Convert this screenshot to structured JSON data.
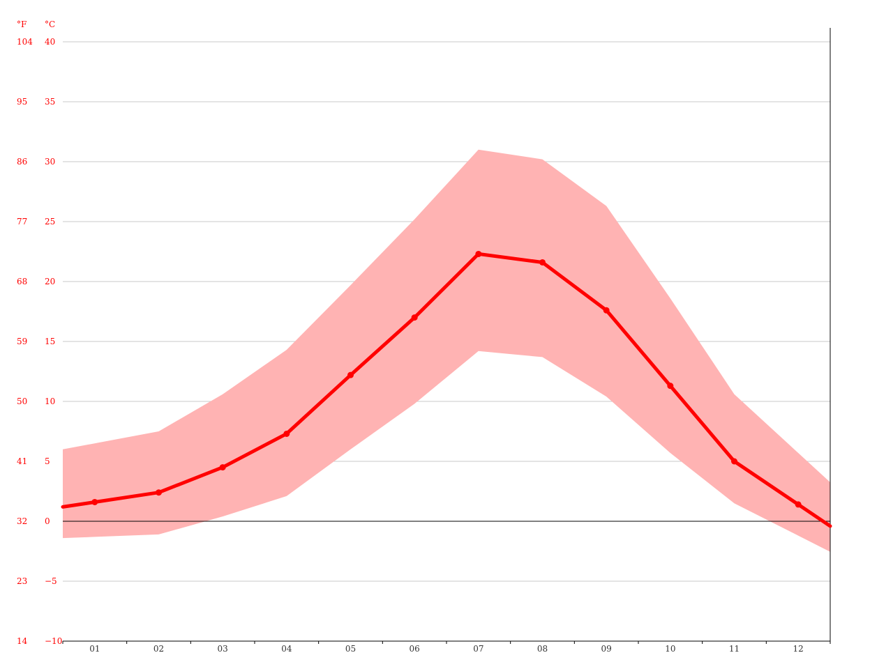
{
  "chart_data": {
    "type": "line",
    "title": "",
    "xlabel": "",
    "ylabel": "",
    "unit_labels": {
      "fahrenheit": "°F",
      "celsius": "°C"
    },
    "categories": [
      "01",
      "02",
      "03",
      "04",
      "05",
      "06",
      "07",
      "08",
      "09",
      "10",
      "11",
      "12"
    ],
    "ylim": [
      -10,
      40
    ],
    "y_ticks_celsius": [
      "−10",
      "−5",
      "0",
      "5",
      "10",
      "15",
      "20",
      "25",
      "30",
      "35",
      "40"
    ],
    "y_ticks_celsius_values": [
      -10,
      -5,
      0,
      5,
      10,
      15,
      20,
      25,
      30,
      35,
      40
    ],
    "y_ticks_fahrenheit": [
      "14",
      "23",
      "32",
      "41",
      "50",
      "59",
      "68",
      "77",
      "86",
      "95",
      "104"
    ],
    "grid": true,
    "legend": "none",
    "series": [
      {
        "values": [
          1.6,
          2.4,
          4.5,
          7.3,
          12.2,
          17.0,
          22.3,
          21.6,
          17.6,
          11.3,
          5.0,
          1.4
        ],
        "color": "#ff0000"
      }
    ],
    "range_band": {
      "color": "#ffb3b3",
      "max_values": [
        6.5,
        7.5,
        10.6,
        14.3,
        19.7,
        25.2,
        31.0,
        30.2,
        26.3,
        18.6,
        10.6,
        5.7
      ],
      "min_values": [
        -1.3,
        -1.1,
        0.4,
        2.1,
        6.0,
        9.8,
        14.2,
        13.7,
        10.4,
        5.7,
        1.5,
        -1.2
      ]
    },
    "colors": {
      "axis_text": "#ff0000",
      "category_text": "#333333"
    }
  }
}
